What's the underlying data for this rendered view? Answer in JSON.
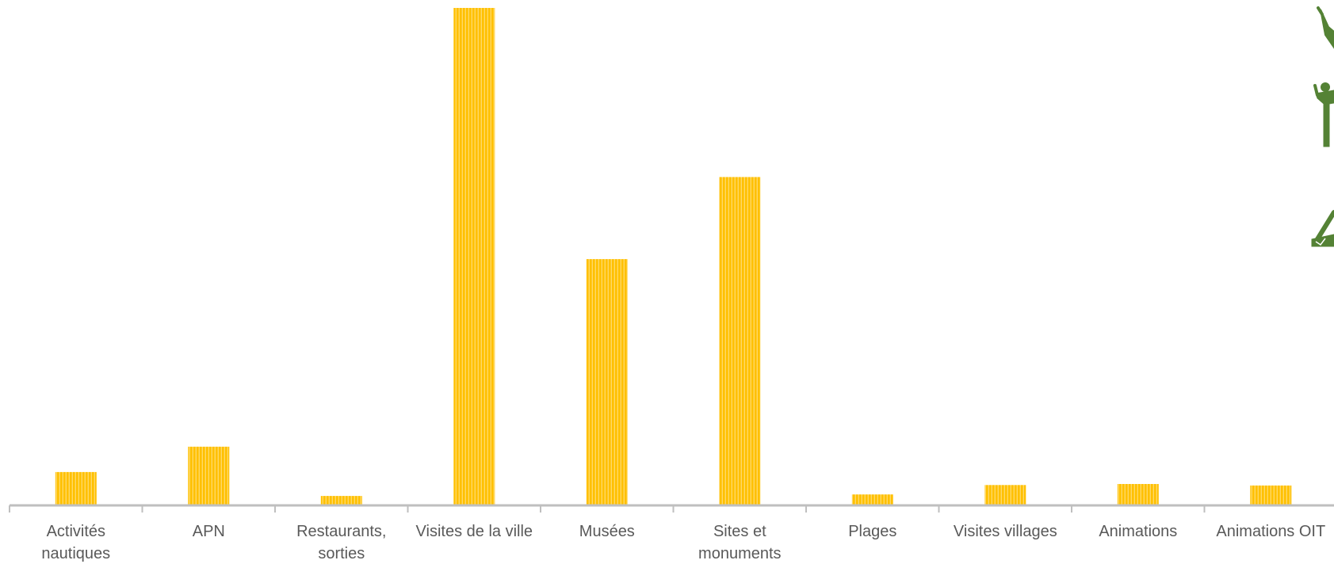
{
  "chart_data": {
    "type": "bar",
    "title": "",
    "xlabel": "",
    "ylabel": "",
    "categories": [
      [
        "Activités",
        "nautiques"
      ],
      [
        "APN"
      ],
      [
        "Restaurants,",
        "sorties"
      ],
      [
        "Visites de la ville"
      ],
      [
        "Musées"
      ],
      [
        "Sites et",
        "monuments"
      ],
      [
        "Plages"
      ],
      [
        "Visites villages"
      ],
      [
        "Animations"
      ],
      [
        "Animations OIT"
      ]
    ],
    "values": [
      6.7,
      11.8,
      1.9,
      100,
      49.5,
      66,
      2.2,
      4.1,
      4.3,
      4.0
    ],
    "ylim": [
      0,
      100
    ],
    "grid": false,
    "legend": "none",
    "colors": {
      "bar": "#FFC000",
      "bar_stripe": "#FFD966",
      "axis": "#BFBFBF",
      "label": "#595959",
      "icon": "#548235"
    }
  },
  "decorations": {
    "icon_names": [
      "hiker-figure-icon",
      "person-figure-icon",
      "climber-figure-icon"
    ]
  }
}
